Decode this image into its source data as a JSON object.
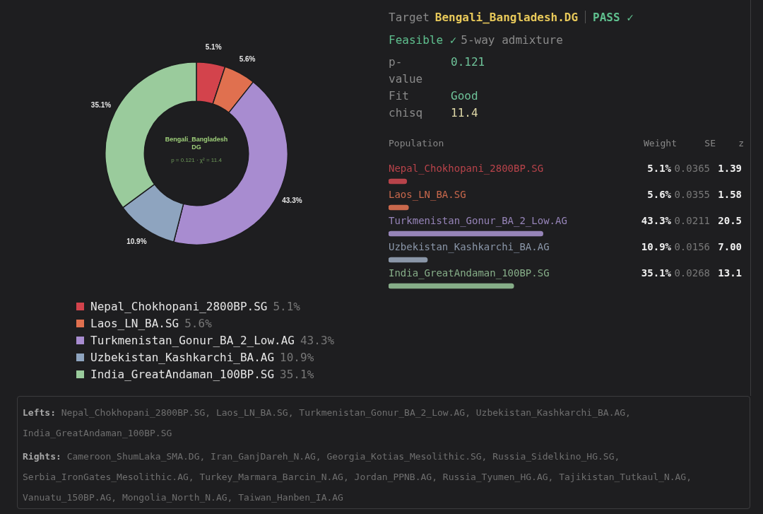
{
  "chart_data": [
    {
      "type": "donut",
      "title": "Bengali_Bangladesh DG",
      "subtitle": "p = 0.121 · χ² = 11.4",
      "legend": "bottom",
      "categories": [
        "Nepal_Chokhopani_2800BP.SG",
        "Laos_LN_BA.SG",
        "Turkmenistan_Gonur_BA_2_Low.AG",
        "Uzbekistan_Kashkarchi_BA.AG",
        "India_GreatAndaman_100BP.SG"
      ],
      "values": [
        5.1,
        5.6,
        43.3,
        10.9,
        35.1
      ],
      "colors": [
        "#d3434c",
        "#e0704f",
        "#a88cd0",
        "#8ea4bf",
        "#9acb9c"
      ],
      "value_labels": [
        "5.1%",
        "5.6%",
        "43.3%",
        "10.9%",
        "35.1%"
      ]
    },
    {
      "type": "other",
      "annotations": [
        "Target",
        "Bengali_Bangladesh.DG",
        "PASS ✓",
        "Feasible ✓",
        "5-way admixture",
        "p-value",
        "0.121",
        "Fit",
        "Good",
        "chisq",
        "11.4"
      ]
    },
    {
      "type": "bar",
      "orientation": "horizontal",
      "tick_labels": "y",
      "categories": [
        "Nepal_Chokhopani_2800BP.SG",
        "Laos_LN_BA.SG",
        "Turkmenistan_Gonur_BA_2_Low.AG",
        "Uzbekistan_Kashkarchi_BA.AG",
        "India_GreatAndaman_100BP.SG"
      ],
      "values": [
        5.1,
        5.6,
        43.3,
        10.9,
        35.1
      ],
      "colors": [
        "#b8434a",
        "#c9684c",
        "#9684b8",
        "#8a96a8",
        "#86ad88"
      ],
      "value_labels": [
        "5.1%",
        "5.6%",
        "43.3%",
        "10.9%",
        "35.1%"
      ],
      "annotations": [
        "Population",
        "Weight",
        "SE",
        "z",
        "0.0365",
        "1.39",
        "0.0355",
        "1.58",
        "0.0211",
        "20.5",
        "0.0156",
        "7.00",
        "0.0268",
        "13.1"
      ]
    },
    {
      "type": "other",
      "annotations": [
        "Lefts:",
        "Nepal_Chokhopani_2800BP.SG, Laos_LN_BA.SG, Turkmenistan_Gonur_BA_2_Low.AG, Uzbekistan_Kashkarchi_BA.AG, India_GreatAndaman_100BP.SG",
        "Rights:",
        "Cameroon_ShumLaka_SMA.DG, Iran_GanjDareh_N.AG, Georgia_Kotias_Mesolithic.SG, Russia_Sidelkino_HG.SG, Serbia_IronGates_Mesolithic.AG, Turkey_Marmara_Barcin_N.AG, Jordan_PPNB.AG, Russia_Tyumen_HG.AG, Tajikistan_Tutkaul_N.AG, Vanuatu_150BP.AG, Mongolia_North_N.AG, Taiwan_Hanben_IA.AG"
      ]
    }
  ]
}
